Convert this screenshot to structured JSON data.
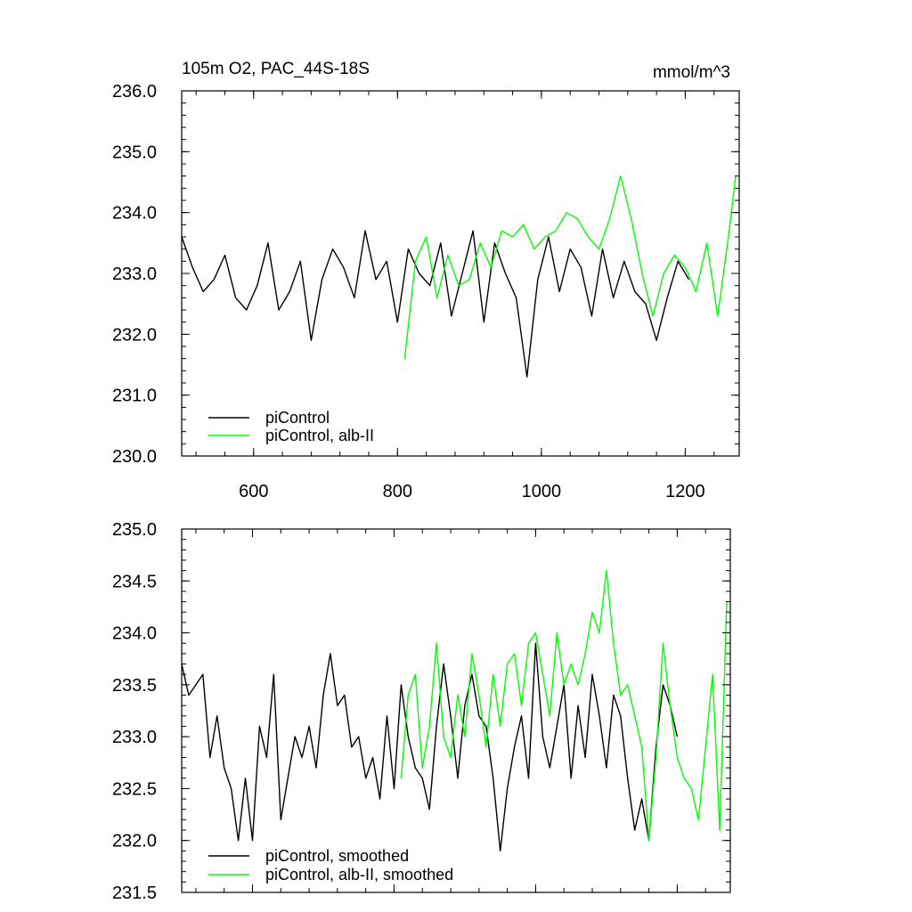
{
  "chart_data": [
    {
      "type": "line",
      "title_left": "105m O2, PAC_44S-18S",
      "title_right": "mmol/m^3",
      "xlim": [
        500,
        1275
      ],
      "ylim": [
        230.0,
        236.0
      ],
      "x_ticks": [
        600,
        800,
        1000,
        1200
      ],
      "x_tick_labels": [
        "600",
        "800",
        "1000",
        "1200"
      ],
      "y_ticks": [
        230.0,
        231.0,
        232.0,
        233.0,
        234.0,
        235.0,
        236.0
      ],
      "y_tick_labels": [
        "230.0",
        "231.0",
        "232.0",
        "233.0",
        "234.0",
        "235.0",
        "236.0"
      ],
      "series": [
        {
          "name": "piControl",
          "color": "#000000",
          "x": [
            500,
            515,
            530,
            545,
            560,
            575,
            590,
            605,
            620,
            635,
            650,
            665,
            680,
            695,
            710,
            725,
            740,
            755,
            770,
            785,
            800,
            815,
            830,
            845,
            860,
            875,
            890,
            905,
            920,
            935,
            950,
            965,
            980,
            995,
            1010,
            1025,
            1040,
            1055,
            1070,
            1085,
            1100,
            1115,
            1130,
            1145,
            1160,
            1175,
            1190,
            1205
          ],
          "values": [
            233.6,
            233.1,
            232.7,
            232.9,
            233.3,
            232.6,
            232.4,
            232.8,
            233.5,
            232.4,
            232.7,
            233.2,
            231.9,
            232.9,
            233.4,
            233.1,
            232.6,
            233.7,
            232.9,
            233.2,
            232.2,
            233.4,
            233.0,
            232.8,
            233.5,
            232.3,
            233.0,
            233.7,
            232.2,
            233.5,
            233.0,
            232.6,
            231.3,
            232.9,
            233.6,
            232.7,
            233.4,
            233.1,
            232.3,
            233.4,
            232.6,
            233.2,
            232.7,
            232.5,
            231.9,
            232.6,
            233.2,
            232.9
          ]
        },
        {
          "name": "piControl, alb-II",
          "color": "#00ff00",
          "x": [
            810,
            825,
            840,
            855,
            870,
            885,
            900,
            915,
            930,
            945,
            960,
            975,
            990,
            1005,
            1020,
            1035,
            1050,
            1065,
            1080,
            1095,
            1110,
            1125,
            1140,
            1155,
            1170,
            1185,
            1200,
            1215,
            1230,
            1245,
            1260,
            1270
          ],
          "values": [
            231.6,
            233.2,
            233.6,
            232.6,
            233.3,
            232.8,
            232.9,
            233.5,
            233.1,
            233.7,
            233.6,
            233.8,
            233.4,
            233.6,
            233.7,
            234.0,
            233.9,
            233.6,
            233.4,
            233.9,
            234.6,
            233.9,
            233.0,
            232.3,
            233.0,
            233.3,
            233.1,
            232.7,
            233.5,
            232.3,
            233.6,
            234.6
          ]
        }
      ],
      "legend": [
        {
          "label": "piControl",
          "color": "#000000"
        },
        {
          "label": "piControl, alb-II",
          "color": "#00ff00"
        }
      ]
    },
    {
      "type": "line",
      "title_left": "",
      "title_right": "",
      "xlim": [
        500,
        1275
      ],
      "ylim": [
        231.5,
        235.0
      ],
      "x_ticks": [
        600,
        800,
        1000,
        1200
      ],
      "x_tick_labels": [
        "",
        "",
        "",
        ""
      ],
      "y_ticks": [
        231.5,
        232.0,
        232.5,
        233.0,
        233.5,
        234.0,
        234.5,
        235.0
      ],
      "y_tick_labels": [
        "231.5",
        "232.0",
        "232.5",
        "233.0",
        "233.5",
        "234.0",
        "234.5",
        "235.0"
      ],
      "series": [
        {
          "name": "piControl, smoothed",
          "color": "#000000",
          "x": [
            500,
            510,
            520,
            530,
            540,
            550,
            560,
            570,
            580,
            590,
            600,
            610,
            620,
            630,
            640,
            650,
            660,
            670,
            680,
            690,
            700,
            710,
            720,
            730,
            740,
            750,
            760,
            770,
            780,
            790,
            800,
            810,
            820,
            830,
            840,
            850,
            860,
            870,
            880,
            890,
            900,
            910,
            920,
            930,
            940,
            950,
            960,
            970,
            980,
            990,
            1000,
            1010,
            1020,
            1030,
            1040,
            1050,
            1060,
            1070,
            1080,
            1090,
            1100,
            1110,
            1120,
            1130,
            1140,
            1150,
            1160,
            1170,
            1180,
            1190,
            1200
          ],
          "values": [
            233.7,
            233.4,
            233.5,
            233.6,
            232.8,
            233.2,
            232.7,
            232.5,
            232.0,
            232.6,
            232.0,
            233.1,
            232.8,
            233.6,
            232.2,
            232.6,
            233.0,
            232.8,
            233.1,
            232.7,
            233.4,
            233.8,
            233.3,
            233.4,
            232.9,
            233.0,
            232.6,
            232.8,
            232.4,
            233.2,
            232.5,
            233.5,
            233.0,
            232.7,
            232.6,
            232.3,
            233.1,
            233.7,
            233.2,
            232.6,
            233.3,
            233.6,
            233.2,
            233.1,
            232.6,
            231.9,
            232.5,
            232.9,
            233.2,
            232.6,
            233.9,
            233.0,
            232.7,
            233.1,
            233.5,
            232.6,
            233.3,
            232.8,
            233.6,
            233.2,
            232.7,
            233.4,
            233.2,
            232.6,
            232.1,
            232.4,
            232.0,
            232.9,
            233.5,
            233.3,
            233.0
          ]
        },
        {
          "name": "piControl, alb-II, smoothed",
          "color": "#00ff00",
          "x": [
            810,
            820,
            830,
            840,
            850,
            860,
            870,
            880,
            890,
            900,
            910,
            920,
            930,
            940,
            950,
            960,
            970,
            980,
            990,
            1000,
            1010,
            1020,
            1030,
            1040,
            1050,
            1060,
            1070,
            1080,
            1090,
            1100,
            1110,
            1120,
            1130,
            1140,
            1150,
            1160,
            1170,
            1180,
            1190,
            1200,
            1210,
            1220,
            1230,
            1240,
            1250,
            1260,
            1270
          ],
          "values": [
            232.6,
            233.4,
            233.6,
            232.7,
            233.1,
            233.9,
            233.0,
            232.8,
            233.4,
            233.0,
            233.8,
            233.4,
            232.9,
            233.6,
            233.1,
            233.7,
            233.8,
            233.3,
            233.9,
            234.0,
            233.6,
            233.2,
            234.0,
            233.5,
            233.7,
            233.5,
            233.8,
            234.2,
            234.0,
            234.6,
            233.9,
            233.4,
            233.5,
            233.2,
            232.9,
            232.0,
            232.8,
            233.9,
            233.3,
            232.8,
            232.6,
            232.5,
            232.2,
            232.9,
            233.6,
            232.1,
            234.3
          ]
        }
      ],
      "legend": [
        {
          "label": "piControl, smoothed",
          "color": "#000000"
        },
        {
          "label": "piControl, alb-II, smoothed",
          "color": "#00ff00"
        }
      ]
    }
  ]
}
